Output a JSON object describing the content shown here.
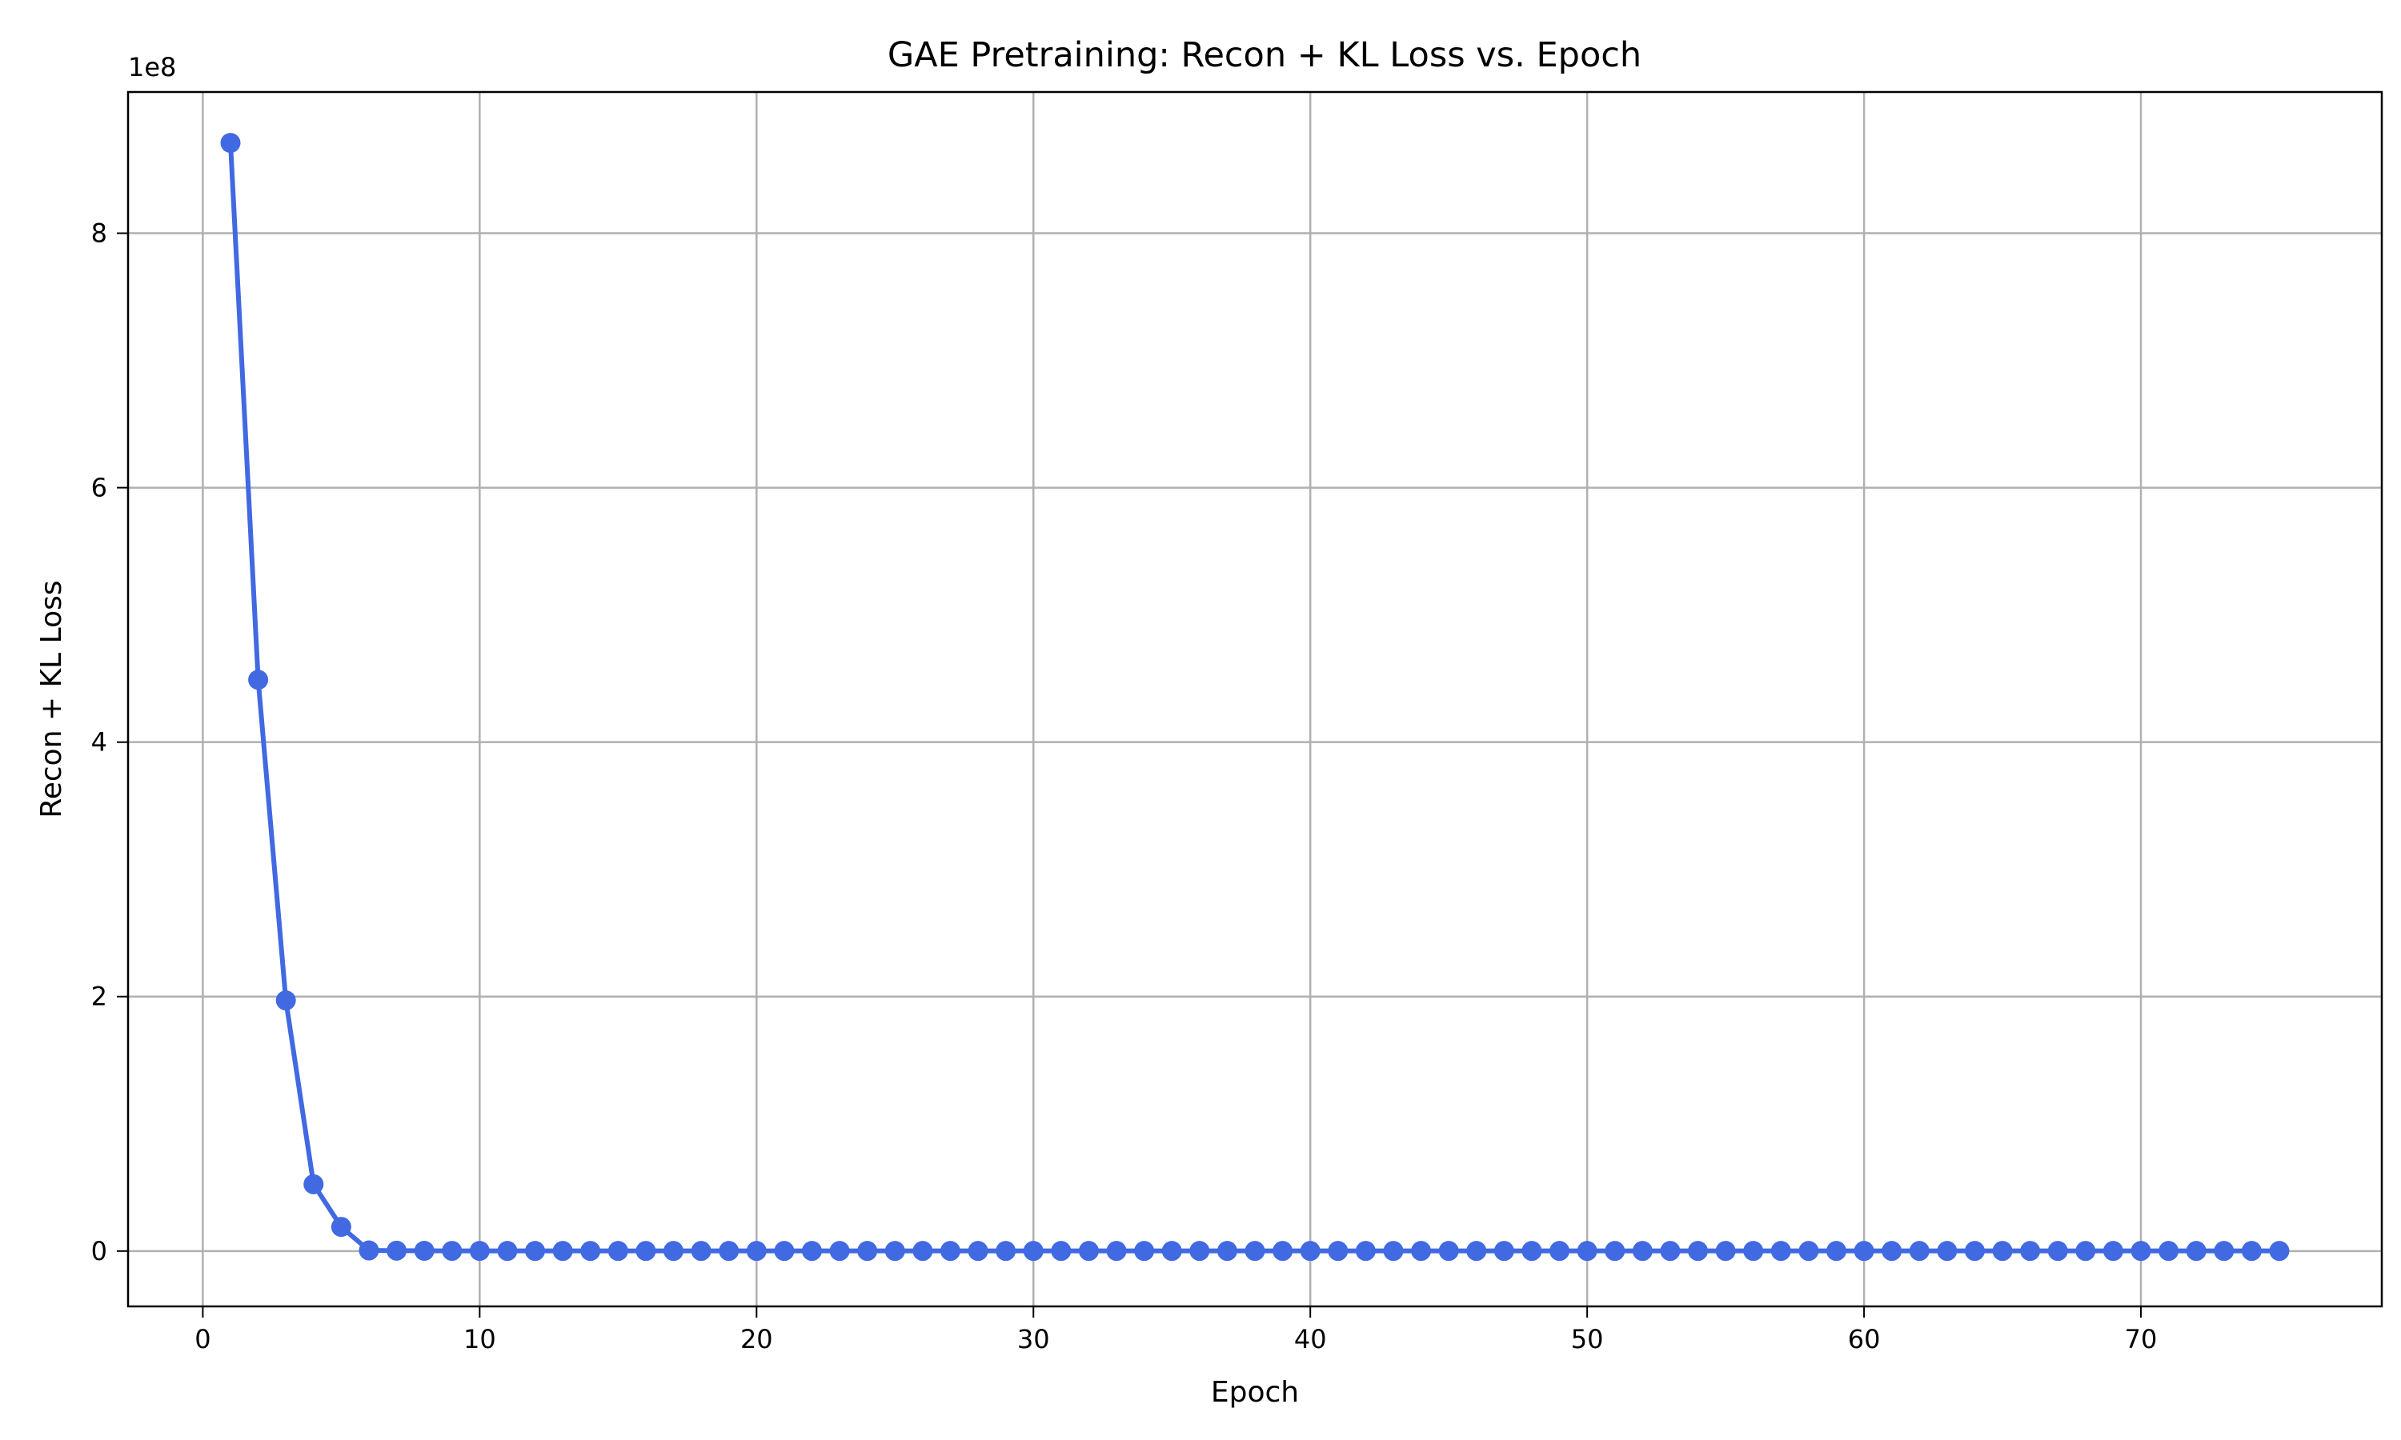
{
  "chart_data": {
    "type": "line",
    "title": "GAE Pretraining: Recon + KL Loss vs. Epoch",
    "xlabel": "Epoch",
    "ylabel": "Recon + KL Loss",
    "y_scale_label": "1e8",
    "xlim": [
      -2.7,
      78.7
    ],
    "ylim": [
      -43500000,
      911000000
    ],
    "x_ticks": [
      0,
      10,
      20,
      30,
      40,
      50,
      60,
      70
    ],
    "y_ticks": [
      0,
      200000000,
      400000000,
      600000000,
      800000000
    ],
    "y_tick_labels": [
      "0",
      "2",
      "4",
      "6",
      "8"
    ],
    "grid": true,
    "marker": "circle",
    "color": "#4169e1",
    "series": [
      {
        "x": [
          1,
          2,
          3,
          4,
          5,
          6,
          7,
          8,
          9,
          10,
          11,
          12,
          13,
          14,
          15,
          16,
          17,
          18,
          19,
          20,
          21,
          22,
          23,
          24,
          25,
          26,
          27,
          28,
          29,
          30,
          31,
          32,
          33,
          34,
          35,
          36,
          37,
          38,
          39,
          40,
          41,
          42,
          43,
          44,
          45,
          46,
          47,
          48,
          49,
          50,
          51,
          52,
          53,
          54,
          55,
          56,
          57,
          58,
          59,
          60,
          61,
          62,
          63,
          64,
          65,
          66,
          67,
          68,
          69,
          70,
          71,
          72,
          73,
          74,
          75
        ],
        "values": [
          871000000,
          449000000,
          197000000,
          52500000,
          19000000,
          500000,
          300000,
          200000,
          150000,
          120000,
          100000,
          100000,
          100000,
          100000,
          100000,
          100000,
          100000,
          100000,
          100000,
          100000,
          100000,
          100000,
          100000,
          100000,
          100000,
          100000,
          100000,
          100000,
          100000,
          100000,
          100000,
          100000,
          100000,
          100000,
          100000,
          100000,
          100000,
          100000,
          100000,
          100000,
          100000,
          100000,
          100000,
          100000,
          100000,
          100000,
          100000,
          100000,
          100000,
          100000,
          100000,
          100000,
          100000,
          100000,
          100000,
          100000,
          100000,
          100000,
          100000,
          100000,
          100000,
          100000,
          100000,
          100000,
          100000,
          100000,
          100000,
          100000,
          100000,
          100000,
          100000,
          100000,
          100000,
          100000,
          100000
        ]
      }
    ]
  }
}
